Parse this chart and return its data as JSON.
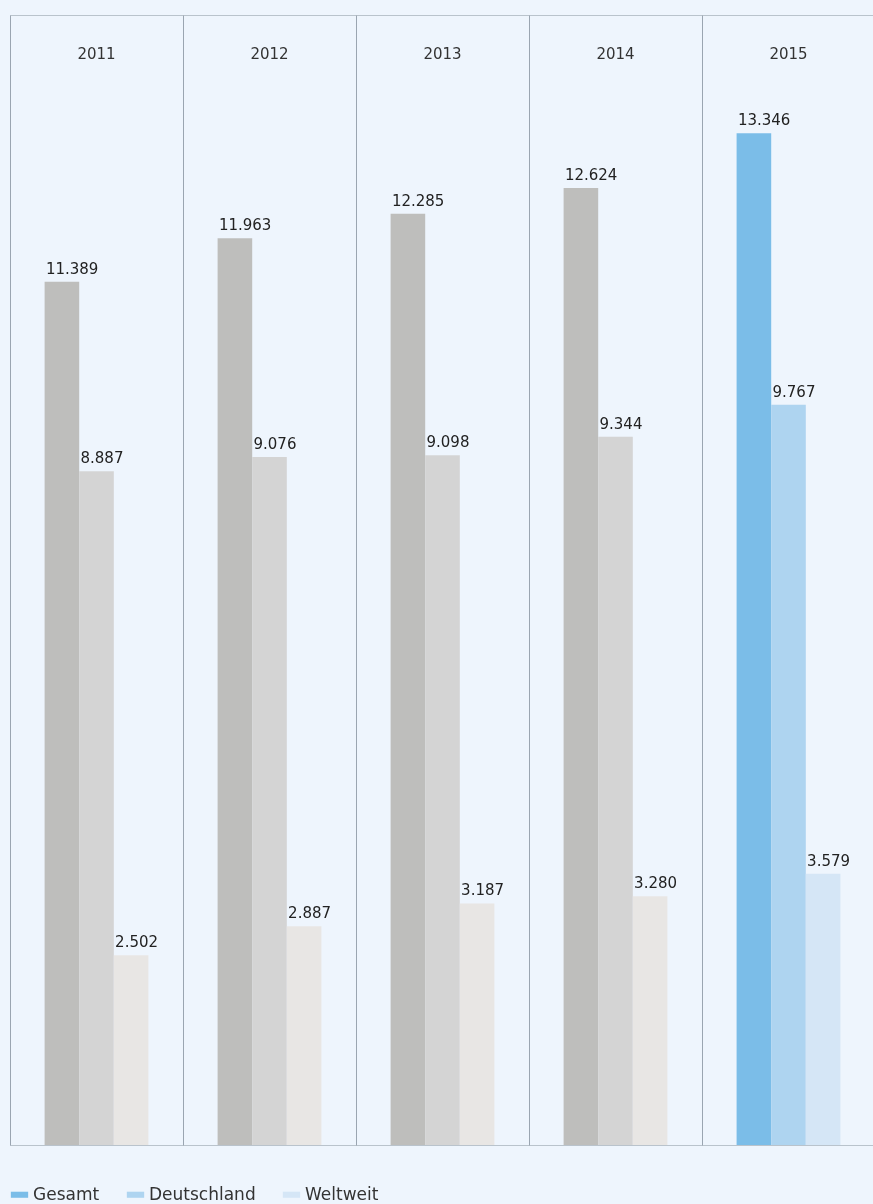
{
  "chart_data": {
    "type": "bar",
    "categories": [
      "2011",
      "2012",
      "2013",
      "2014",
      "2015"
    ],
    "series": [
      {
        "name": "Gesamt",
        "color": "#7bbde8",
        "colors": [
          "#bebebc",
          "#bebebc",
          "#bebebc",
          "#bebebc",
          "#7bbde8"
        ],
        "values": [
          11389,
          11963,
          12285,
          12624,
          13346
        ],
        "value_labels": [
          "11.389",
          "11.963",
          "12.285",
          "12.624",
          "13.346"
        ]
      },
      {
        "name": "Deutschland",
        "color": "#aed4f0",
        "colors": [
          "#d4d4d4",
          "#d4d4d4",
          "#d4d4d4",
          "#d4d4d4",
          "#aed4f0"
        ],
        "values": [
          8887,
          9076,
          9098,
          9344,
          9767
        ],
        "value_labels": [
          "8.887",
          "9.076",
          "9.098",
          "9.344",
          "9.767"
        ]
      },
      {
        "name": "Weltweit",
        "color": "#d5e6f6",
        "colors": [
          "#e8e6e4",
          "#e8e6e4",
          "#e8e6e4",
          "#e8e6e4",
          "#d5e6f6"
        ],
        "values": [
          2502,
          2887,
          3187,
          3280,
          3579
        ],
        "value_labels": [
          "2.502",
          "2.887",
          "3.187",
          "3.280",
          "3.579"
        ]
      }
    ],
    "grid": "x",
    "legend": "bottom left"
  }
}
